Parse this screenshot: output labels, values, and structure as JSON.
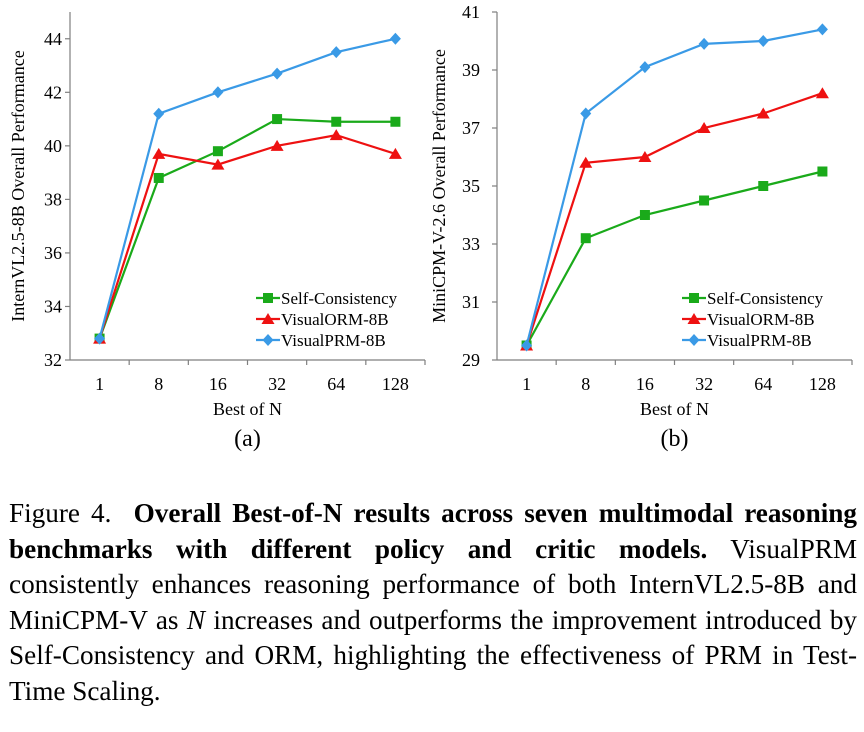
{
  "chart_data": [
    {
      "type": "line",
      "panel_label": "(a)",
      "x": [
        "1",
        "8",
        "16",
        "32",
        "64",
        "128"
      ],
      "xlabel": "Best of N",
      "ylabel": "InternVL2.5-8B Overall Performance",
      "ylim": [
        32,
        45
      ],
      "yticks": [
        32,
        34,
        36,
        38,
        40,
        42,
        44
      ],
      "grid": false,
      "legend_position": "bottom-right",
      "series": [
        {
          "name": "Self-Consistency",
          "color": "#1aaa1a",
          "marker": "square",
          "values": [
            32.8,
            38.8,
            39.8,
            41.0,
            40.9,
            40.9
          ]
        },
        {
          "name": "VisualORM-8B",
          "color": "#ee1111",
          "marker": "triangle",
          "values": [
            32.8,
            39.7,
            39.3,
            40.0,
            40.4,
            39.7
          ]
        },
        {
          "name": "VisualPRM-8B",
          "color": "#3a9ae6",
          "marker": "diamond",
          "values": [
            32.8,
            41.2,
            42.0,
            42.7,
            43.5,
            44.0
          ]
        }
      ]
    },
    {
      "type": "line",
      "panel_label": "(b)",
      "x": [
        "1",
        "8",
        "16",
        "32",
        "64",
        "128"
      ],
      "xlabel": "Best of N",
      "ylabel": "MiniCPM-V-2.6 Overall Performance",
      "ylim": [
        29,
        41
      ],
      "yticks": [
        29,
        31,
        33,
        35,
        37,
        39,
        41
      ],
      "grid": false,
      "legend_position": "bottom-right",
      "series": [
        {
          "name": "Self-Consistency",
          "color": "#1aaa1a",
          "marker": "square",
          "values": [
            29.5,
            33.2,
            34.0,
            34.5,
            35.0,
            35.5
          ]
        },
        {
          "name": "VisualORM-8B",
          "color": "#ee1111",
          "marker": "triangle",
          "values": [
            29.5,
            35.8,
            36.0,
            37.0,
            37.5,
            38.2
          ]
        },
        {
          "name": "VisualPRM-8B",
          "color": "#3a9ae6",
          "marker": "diamond",
          "values": [
            29.5,
            37.5,
            39.1,
            39.9,
            40.0,
            40.4
          ]
        }
      ]
    }
  ],
  "caption": {
    "label": "Figure 4.",
    "title": "Overall Best-of-N results across seven multimodal reasoning benchmarks with different policy and critic models.",
    "body_before_n": "VisualPRM consistently enhances reasoning performance of both InternVL2.5-8B and MiniCPM-V as",
    "n_symbol": "N",
    "body_after_n": "increases and outperforms the improvement introduced by Self-Consistency and ORM, highlighting the effectiveness of PRM in Test-Time Scaling."
  }
}
